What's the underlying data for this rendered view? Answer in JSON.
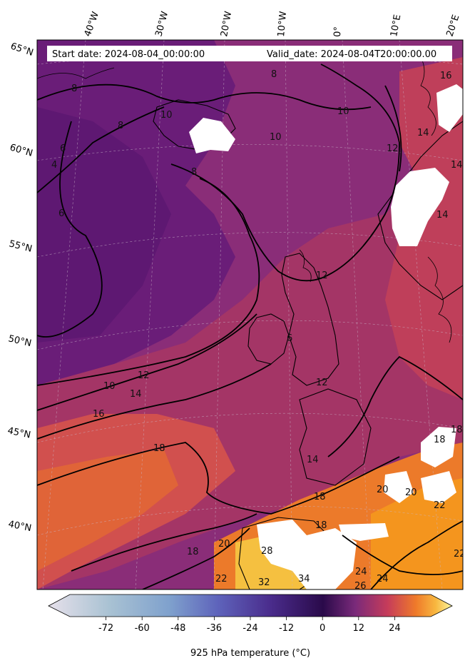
{
  "header": {
    "start_date": "Start date: 2024-08-04_00:00:00",
    "valid_date": "Valid_date: 2024-08-04T20:00:00.00"
  },
  "longitude_labels": [
    "40°W",
    "30°W",
    "20°W",
    "10°W",
    "0°",
    "10°E",
    "20°E"
  ],
  "latitude_labels": [
    "65°N",
    "60°N",
    "55°N",
    "50°N",
    "45°N",
    "40°N"
  ],
  "contour_labels": [
    "8",
    "8",
    "10",
    "10",
    "8",
    "4",
    "6",
    "8",
    "6",
    "10",
    "12",
    "14",
    "14",
    "14",
    "12",
    "10",
    "12",
    "14",
    "16",
    "16",
    "18",
    "18",
    "18",
    "18",
    "20",
    "20",
    "18",
    "22",
    "22",
    "24",
    "24",
    "26",
    "28",
    "32",
    "34",
    "20",
    "22",
    "18",
    "12",
    "6",
    "14"
  ],
  "colorbar": {
    "label": "925 hPa temperature ($^\\circ$C)",
    "label_display": "925 hPa temperature (°C)",
    "ticks": [
      "-72",
      "-60",
      "-48",
      "-36",
      "-24",
      "-12",
      "0",
      "12",
      "24"
    ],
    "tick_values": [
      -72,
      -60,
      -48,
      -36,
      -24,
      -12,
      0,
      12,
      24
    ],
    "range": [
      -84,
      36
    ],
    "colors": [
      "#ddd8e6",
      "#a9c2d3",
      "#83a9cc",
      "#6a82c4",
      "#5a4fb0",
      "#3f1f72",
      "#2a0a4a",
      "#7a2a7a",
      "#c03c60",
      "#ef7a2a",
      "#f7b23b",
      "#fbf7a0"
    ]
  },
  "map_colors": {
    "cold": "#6a1d7a",
    "cool": "#8a2b7a",
    "mild": "#b33a6a",
    "warm": "#d8544a",
    "hot": "#ec7530",
    "very_hot": "#f4a128"
  }
}
